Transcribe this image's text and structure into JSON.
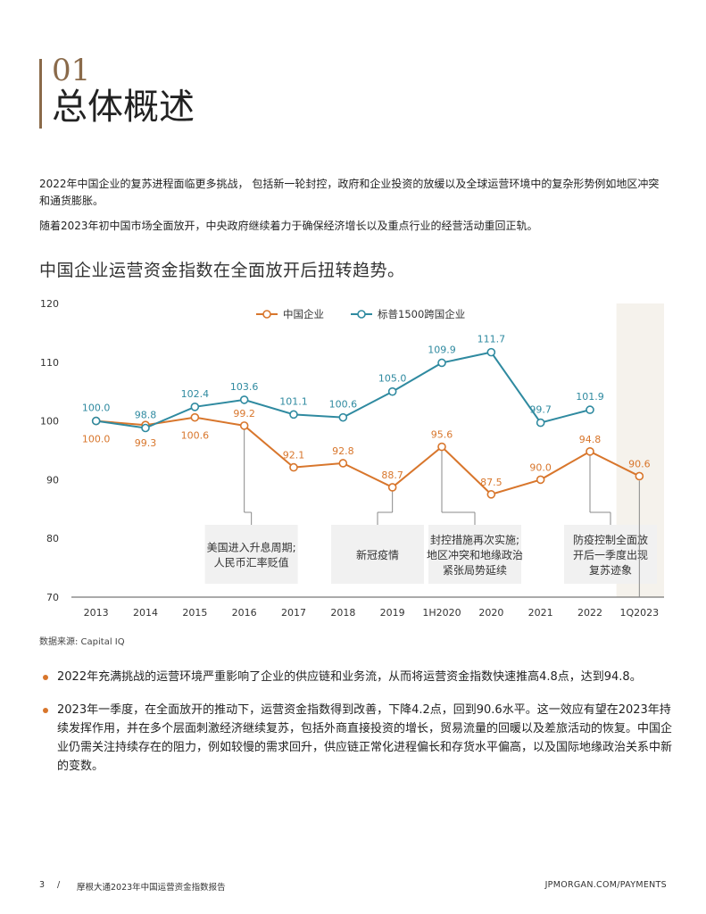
{
  "section": {
    "number": "01",
    "title": "总体概述"
  },
  "paragraphs": [
    "2022年中国企业的复苏进程面临更多挑战，  包括新一轮封控，政府和企业投资的放缓以及全球运营环境中的复杂形势例如地区冲突和通货膨胀。",
    "随着2023年初中国市场全面放开，中央政府继续着力于确保经济增长以及重点行业的经营活动重回正轨。"
  ],
  "chart_heading": "中国企业运营资金指数在全面放开后扭转趋势。",
  "colors": {
    "china": "#d8762c",
    "sp": "#2f8aa0",
    "accent": "#8a6a4a",
    "highlight": "#f5f2ec",
    "annotation_bg": "#f1f1f1"
  },
  "chart_data": {
    "type": "line",
    "categories": [
      "2013",
      "2014",
      "2015",
      "2016",
      "2017",
      "2018",
      "2019",
      "1H2020",
      "2020",
      "2021",
      "2022",
      "1Q2023"
    ],
    "ylim": [
      70,
      120
    ],
    "yticks": [
      70,
      80,
      90,
      100,
      110,
      120
    ],
    "series": [
      {
        "name": "中国企业",
        "color": "#d8762c",
        "values": [
          100.0,
          99.3,
          100.6,
          99.2,
          92.1,
          92.8,
          88.7,
          95.6,
          87.5,
          90.0,
          94.8,
          90.6
        ],
        "labels": [
          "100.0",
          "99.3",
          "100.6",
          "99.2",
          "92.1",
          "92.8",
          "88.7",
          "95.6",
          "87.5",
          "90.0",
          "94.8",
          "90.6"
        ]
      },
      {
        "name": "标普1500跨国企业",
        "color": "#2f8aa0",
        "values": [
          100.0,
          98.8,
          102.4,
          103.6,
          101.1,
          100.6,
          105.0,
          109.9,
          111.7,
          99.7,
          101.9,
          null
        ],
        "labels": [
          "100.0",
          "98.8",
          "102.4",
          "103.6",
          "101.1",
          "100.6",
          "105.0",
          "109.9",
          "111.7",
          "99.7",
          "101.9",
          ""
        ]
      }
    ],
    "highlight_category": "1Q2023",
    "annotations": [
      {
        "text": [
          "美国进入升息周期;",
          "人民币汇率贬值"
        ],
        "category": "2016"
      },
      {
        "text": [
          "新冠疫情"
        ],
        "category": "2019"
      },
      {
        "text": [
          "封控措施再次实施;",
          "地区冲突和地缘政治",
          "紧张局势延续"
        ],
        "category": "1H2020"
      },
      {
        "text": [
          "防疫控制全面放",
          "开后一季度出现",
          "复苏迹象"
        ],
        "category": "2022"
      }
    ]
  },
  "source": "数据来源: Capital IQ",
  "bullets": [
    "2022年充满挑战的运营环境严重影响了企业的供应链和业务流，从而将运营资金指数快速推高4.8点，达到94.8。",
    "2023年一季度，在全面放开的推动下，运营资金指数得到改善，下降4.2点，回到90.6水平。这一效应有望在2023年持续发挥作用，并在多个层面刺激经济继续复苏，包括外商直接投资的增长，贸易流量的回暖以及差旅活动的恢复。中国企业仍需关注持续存在的阻力，例如较慢的需求回升，供应链正常化进程偏长和存货水平偏高，以及国际地缘政治关系中新的变数。"
  ],
  "footer": {
    "page": "3",
    "separator": "/",
    "title": "摩根大通2023年中国运营资金指数报告",
    "url": "JPMORGAN.COM/PAYMENTS"
  }
}
